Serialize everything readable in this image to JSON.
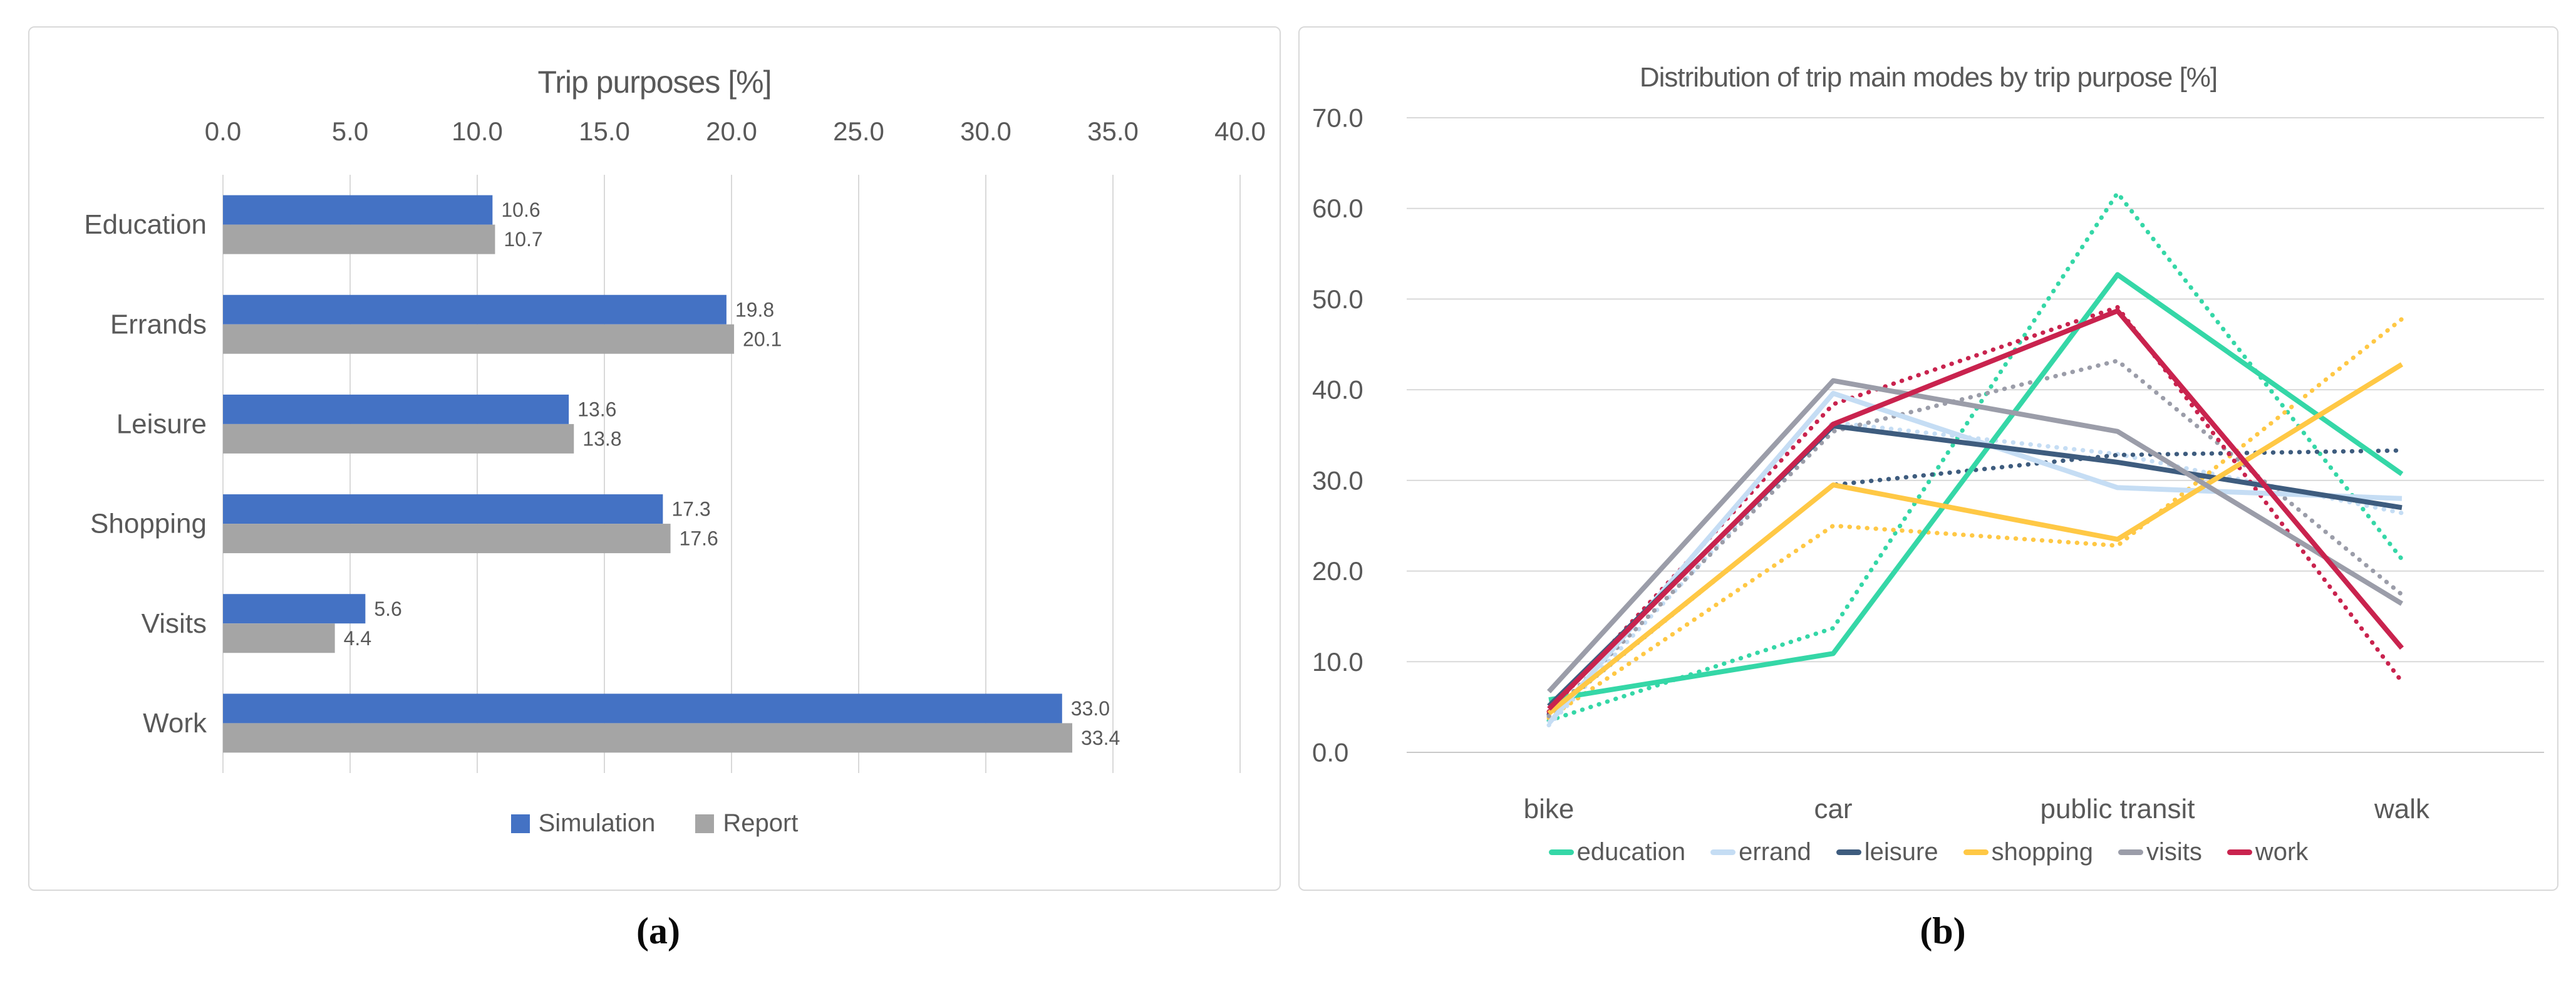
{
  "captions": {
    "a": "(a)",
    "b": "(b)"
  },
  "colors": {
    "text": "#595959",
    "grid": "#D9D9D9",
    "zero_line": "#C9C9C9",
    "panel_border": "#D9D9D9",
    "simulation_blue": "#4472C4",
    "report_gray": "#A5A5A5"
  },
  "chart_data": [
    {
      "panel": "a",
      "type": "bar",
      "orientation": "horizontal",
      "title": "Trip purposes [%]",
      "axis_position": "top",
      "x_ticks": [
        "0.0",
        "5.0",
        "10.0",
        "15.0",
        "20.0",
        "25.0",
        "30.0",
        "35.0",
        "40.0"
      ],
      "xlim": [
        0,
        40
      ],
      "grid": "vertical",
      "legend_position": "bottom",
      "categories": [
        "Education",
        "Errands",
        "Leisure",
        "Shopping",
        "Visits",
        "Work"
      ],
      "series": [
        {
          "name": "Simulation",
          "color": "#4472C4",
          "values": [
            10.6,
            19.8,
            13.6,
            17.3,
            5.6,
            33.0
          ],
          "labels": [
            "10.6",
            "19.8",
            "13.6",
            "17.3",
            "5.6",
            "33.0"
          ]
        },
        {
          "name": "Report",
          "color": "#A5A5A5",
          "values": [
            10.7,
            20.1,
            13.8,
            17.6,
            4.4,
            33.4
          ],
          "labels": [
            "10.7",
            "20.1",
            "13.8",
            "17.6",
            "4.4",
            "33.4"
          ]
        }
      ]
    },
    {
      "panel": "b",
      "type": "line",
      "title": "Distribution of trip main modes by trip purpose [%]",
      "x": [
        "bike",
        "car",
        "public transit",
        "walk"
      ],
      "y_ticks": [
        "70.0",
        "60.0",
        "50.0",
        "40.0",
        "30.0",
        "20.0",
        "10.0",
        "0.0"
      ],
      "ylim": [
        0,
        70
      ],
      "grid": "horizontal",
      "legend_position": "bottom",
      "line_styles_note": "solid = simulation, dotted = report",
      "legend": [
        {
          "label": "education",
          "color": "#35D7A7"
        },
        {
          "label": "errand",
          "color": "#C5DDF4"
        },
        {
          "label": "leisure",
          "color": "#3E5C7E"
        },
        {
          "label": "shopping",
          "color": "#FFC845"
        },
        {
          "label": "visits",
          "color": "#9B9DA9"
        },
        {
          "label": "work",
          "color": "#C9234E"
        }
      ],
      "series": [
        {
          "name": "education",
          "style": "solid",
          "color": "#35D7A7",
          "values": [
            5.8,
            10.9,
            52.7,
            30.7
          ]
        },
        {
          "name": "education",
          "style": "dotted",
          "color": "#35D7A7",
          "values": [
            3.5,
            13.7,
            61.7,
            21.3
          ]
        },
        {
          "name": "errand",
          "style": "solid",
          "color": "#C5DDF4",
          "values": [
            3.2,
            39.6,
            29.2,
            28.0
          ]
        },
        {
          "name": "errand",
          "style": "dotted",
          "color": "#C5DDF4",
          "values": [
            3.0,
            36.4,
            32.9,
            26.4
          ]
        },
        {
          "name": "leisure",
          "style": "solid",
          "color": "#3E5C7E",
          "values": [
            5.1,
            36.0,
            32.0,
            27.0
          ]
        },
        {
          "name": "leisure",
          "style": "dotted",
          "color": "#3E5C7E",
          "values": [
            4.2,
            29.5,
            32.8,
            33.3
          ]
        },
        {
          "name": "shopping",
          "style": "solid",
          "color": "#FFC845",
          "values": [
            4.3,
            29.5,
            23.5,
            42.8
          ]
        },
        {
          "name": "shopping",
          "style": "dotted",
          "color": "#FFC845",
          "values": [
            3.8,
            25.0,
            22.8,
            47.8
          ]
        },
        {
          "name": "visits",
          "style": "solid",
          "color": "#9B9DA9",
          "values": [
            6.7,
            41.0,
            35.4,
            16.4
          ]
        },
        {
          "name": "visits",
          "style": "dotted",
          "color": "#9B9DA9",
          "values": [
            4.0,
            35.4,
            43.2,
            17.4
          ]
        },
        {
          "name": "work",
          "style": "solid",
          "color": "#C9234E",
          "values": [
            4.8,
            36.2,
            48.7,
            11.5
          ]
        },
        {
          "name": "work",
          "style": "dotted",
          "color": "#C9234E",
          "values": [
            4.5,
            38.4,
            49.1,
            7.8
          ]
        }
      ]
    }
  ]
}
